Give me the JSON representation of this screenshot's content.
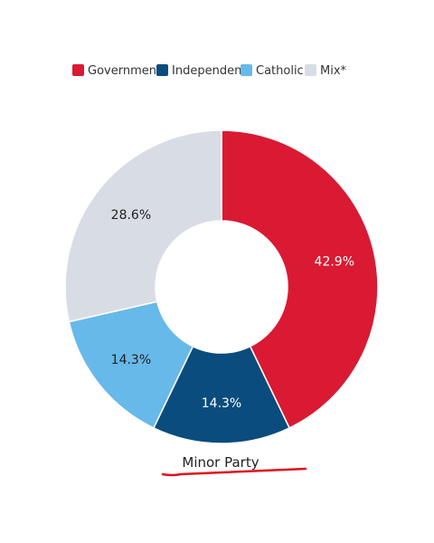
{
  "chart_data": {
    "type": "pie",
    "categories": [
      "Government",
      "Independent",
      "Catholic",
      "Mix*"
    ],
    "values": [
      42.9,
      14.3,
      14.3,
      28.6
    ],
    "labels": [
      "42.9%",
      "14.3%",
      "14.3%",
      "28.6%"
    ],
    "colors": [
      "#d91a32",
      "#0a4c7d",
      "#67b9e9",
      "#d8dce5"
    ],
    "label_colors": [
      "#ffffff",
      "#ffffff",
      "#222222",
      "#222222"
    ],
    "legend_placement": "top",
    "caption": "Minor Party",
    "caption_underline_color": "#e0101e"
  }
}
